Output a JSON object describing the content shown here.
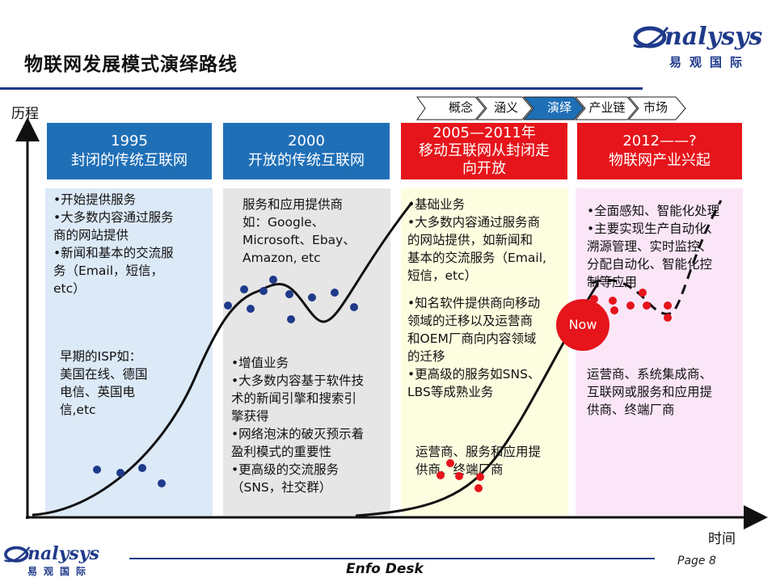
{
  "title": "物联网发展模式演绎路线",
  "logo": {
    "word": "nalysys",
    "sub": "易观国际"
  },
  "axis": {
    "y_label": "历程",
    "x_label": "时间"
  },
  "nav": [
    "概念",
    "涵义",
    "演绎",
    "产业链",
    "市场"
  ],
  "columns": [
    {
      "head_line1": "1995",
      "head_line2": "封闭的传统互联网",
      "text_top": [
        "•开始提供服务",
        "•大多数内容通过服务",
        "商的网站提供",
        "•新闻和基本的交流服",
        "务（Email，短信，",
        "etc）"
      ],
      "text_bottom": [
        "早期的ISP如：",
        "美国在线、德国",
        "电信、英国电",
        "信,etc"
      ]
    },
    {
      "head_line1": "2000",
      "head_line2": "开放的传统互联网",
      "text_top": [
        "服务和应用提供商",
        "如：Google、",
        "Microsoft、Ebay、",
        "Amazon, etc"
      ],
      "text_bottom": [
        "•增值业务",
        "•大多数内容基于软件技",
        "术的新闻引擎和搜索引",
        "擎获得",
        "•网络泡沫的破灭预示着",
        "盈利模式的重要性",
        "•更高级的交流服务",
        "（SNS，社交群）"
      ]
    },
    {
      "head_line1": "2005—2011年",
      "head_line2": "移动互联网从封闭走",
      "head_line3": "向开放",
      "text_top": [
        "•基础业务",
        "•大多数内容通过服务商",
        "的网站提供，如新闻和",
        "基本的交流服务（Email,",
        "短信，etc）"
      ],
      "text_mid": [
        "•知名软件提供商向移动",
        "领域的迁移以及运营商",
        "和OEM厂商向内容领域",
        "的迁移",
        "•更高级的服务如SNS、",
        "LBS等成熟业务"
      ],
      "text_bottom": [
        "运营商、服务和应用提",
        "供商、终端厂商"
      ]
    },
    {
      "head_line1": "2012——?",
      "head_line2": "物联网产业兴起",
      "text_top": [
        "•全面感知、智能化处理",
        "•主要实现生产自动化、",
        "溯源管理、实时监控、",
        "分配自动化、智能化控",
        "制等应用"
      ],
      "text_bottom": [
        "运营商、系统集成商、",
        "互联网或服务和应用提",
        "供商、终端厂商"
      ]
    }
  ],
  "now_label": "Now",
  "footer": "Enfo Desk",
  "page": "Page 8",
  "colors": {
    "brand_blue": "#1f3a8a",
    "head_blue": "#1f6fb7",
    "head_red": "#e6141b",
    "bg_blue": "#dce9f7",
    "bg_gray": "#e6e6e6",
    "bg_yellow": "#fdfde0",
    "bg_pink": "#fbe6f8"
  }
}
